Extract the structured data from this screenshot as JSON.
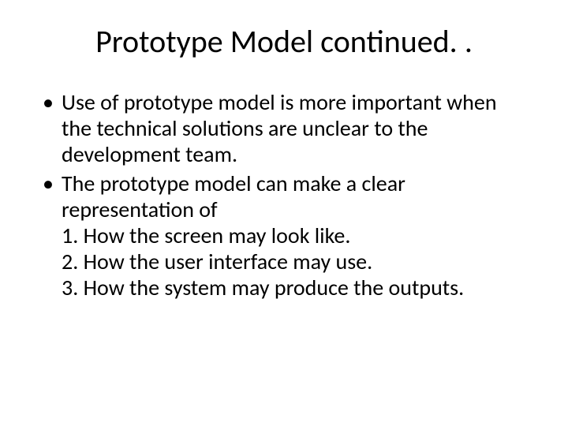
{
  "slide": {
    "title": "Prototype Model continued. .",
    "title_fontsize": 40,
    "body_fontsize": 28,
    "text_color": "#000000",
    "background_color": "#ffffff",
    "bullets": [
      {
        "text": "Use of prototype model is more important when the technical solutions are unclear to the development team."
      },
      {
        "text": "The prototype model can make a clear representation of",
        "subitems": [
          "1. How the screen may look like.",
          "2. How the user interface may use.",
          "3. How the system may produce the outputs."
        ]
      }
    ]
  }
}
